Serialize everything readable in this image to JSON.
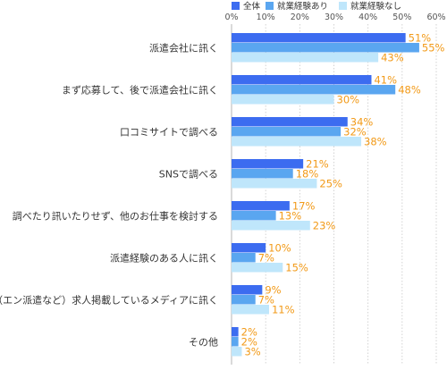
{
  "chart_data": {
    "type": "bar",
    "orientation": "horizontal",
    "categories": [
      "派遣会社に訊く",
      "まず応募して、後で派遣会社に訊く",
      "口コミサイトで調べる",
      "SNSで調べる",
      "調べたり訊いたりせず、他のお仕事を検討する",
      "派遣経験のある人に訊く",
      "（エン派遣など）求人掲載しているメディアに訊く",
      "その他"
    ],
    "series": [
      {
        "name": "全体",
        "color": "#3c6cf0",
        "values": [
          51,
          41,
          34,
          21,
          17,
          10,
          9,
          2
        ]
      },
      {
        "name": "就業経験あり",
        "color": "#5aa6f0",
        "values": [
          55,
          48,
          32,
          18,
          13,
          7,
          7,
          2
        ]
      },
      {
        "name": "就業経験なし",
        "color": "#bfe6fb",
        "values": [
          43,
          30,
          38,
          25,
          23,
          15,
          11,
          3
        ]
      }
    ],
    "xlim": [
      0,
      60
    ],
    "xticks": [
      "0%",
      "10%",
      "20%",
      "30%",
      "40%",
      "50%",
      "60%"
    ],
    "value_suffix": "%",
    "value_label_color": "#f29a18",
    "grid": true,
    "legend_position": "top"
  }
}
